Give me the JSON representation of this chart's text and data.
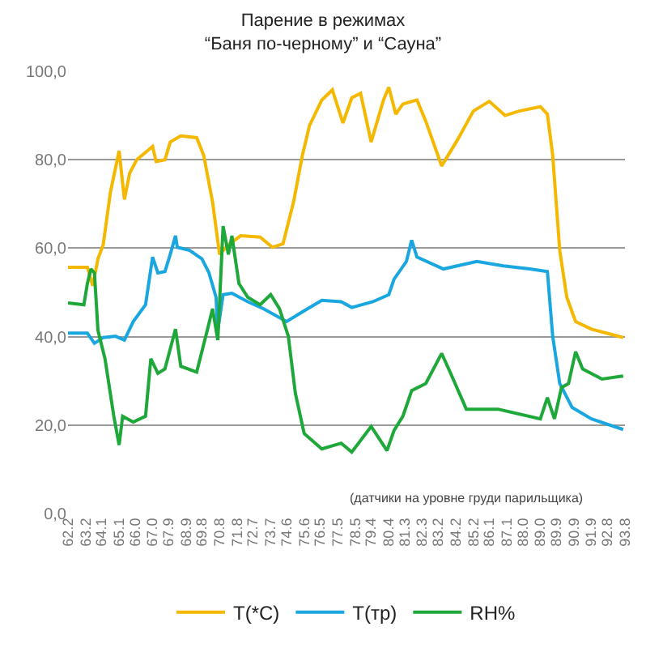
{
  "chart_data": {
    "type": "line",
    "title": "Парение в режимах\n“Баня по-черному” и “Сауна”",
    "annotations": [
      "(датчики на уровне груди парильщика)"
    ],
    "xlim": [
      62.2,
      93.8
    ],
    "xticks": [
      62.2,
      63.2,
      64.1,
      65.1,
      {
        "value": 66.0,
        "label": "66.0"
      },
      {
        "value": 67.0,
        "label": "67.0"
      },
      67.9,
      68.9,
      69.8,
      70.8,
      71.8,
      72.7,
      73.7,
      74.6,
      75.6,
      76.5,
      77.5,
      78.5,
      79.4,
      80.4,
      81.3,
      82.3,
      83.2,
      84.2,
      85.2,
      86.1,
      87.1,
      {
        "value": 88.0,
        "label": "88.0"
      },
      {
        "value": 89.0,
        "label": "89.0"
      },
      89.9,
      90.9,
      91.9,
      92.8,
      93.8
    ],
    "ylim": [
      0,
      100
    ],
    "yticks": [
      {
        "value": 0,
        "label": "0,0"
      },
      {
        "value": 20,
        "label": "20,0"
      },
      {
        "value": 40,
        "label": "40,0"
      },
      {
        "value": 60,
        "label": "60,0"
      },
      {
        "value": 80,
        "label": "80,0"
      },
      {
        "value": 100,
        "label": "100,0"
      }
    ],
    "grid": "y",
    "legend": "bottom",
    "marker": "none",
    "line_style": "solid",
    "series": [
      {
        "name": "T(*C)",
        "color": "#f5b800",
        "x": [
          62.2,
          63.3,
          63.6,
          63.9,
          64.2,
          64.6,
          65.1,
          65.4,
          65.7,
          66.1,
          66.4,
          66.7,
          67.0,
          67.2,
          67.7,
          68.0,
          68.6,
          69.5,
          69.9,
          70.4,
          70.8,
          71.3,
          72.0,
          73.1,
          73.8,
          74.4,
          75.0,
          75.5,
          75.9,
          76.6,
          77.2,
          77.8,
          78.3,
          78.8,
          79.4,
          80.1,
          80.4,
          80.8,
          81.2,
          82.0,
          82.5,
          83.4,
          84.3,
          85.2,
          86.1,
          87.0,
          87.8,
          89.0,
          89.4,
          89.7,
          90.1,
          90.5,
          91.0,
          91.9,
          93.7
        ],
        "values": [
          55.7,
          55.7,
          51.5,
          57.6,
          60.8,
          72.5,
          82,
          71,
          77,
          80,
          81,
          82,
          83,
          79.6,
          80,
          84,
          85.4,
          85,
          81,
          70.5,
          58.6,
          60.8,
          62.8,
          62.5,
          60.2,
          61,
          70.5,
          81,
          87.7,
          93.5,
          95.8,
          88.3,
          94,
          95,
          84,
          93.5,
          96.4,
          90.3,
          92.6,
          93.5,
          88.7,
          78.6,
          84.5,
          91,
          93.2,
          90,
          91,
          92,
          90.3,
          81,
          59.5,
          48.9,
          43.4,
          41.7,
          39.8
        ]
      },
      {
        "name": "T(тр)",
        "color": "#1aa7e0",
        "x": [
          62.2,
          63.3,
          63.7,
          64.2,
          64.9,
          65.4,
          65.9,
          66.6,
          67.0,
          67.3,
          67.7,
          68.0,
          68.3,
          68.4,
          69.1,
          69.8,
          70.2,
          70.6,
          70.7,
          71.0,
          71.5,
          72.4,
          73.3,
          74.6,
          75.5,
          76.6,
          77.7,
          78.3,
          79.5,
          80.4,
          80.7,
          81.4,
          81.7,
          82.0,
          83.5,
          85.4,
          86.9,
          88.4,
          89.4,
          89.7,
          90.1,
          90.8,
          91.9,
          93.7
        ],
        "values": [
          40.8,
          40.8,
          38.5,
          39.8,
          40.1,
          39.2,
          43.4,
          47.2,
          58,
          54.4,
          54.7,
          58.6,
          62.8,
          60.2,
          59.5,
          57.6,
          54.4,
          48.9,
          41.4,
          49.5,
          49.8,
          47.9,
          46.3,
          43.4,
          45.6,
          48.2,
          47.9,
          46.6,
          47.9,
          49.5,
          53,
          57,
          61.8,
          58,
          55.3,
          57,
          56,
          55.3,
          54.7,
          40.1,
          29.4,
          24,
          21.4,
          19
        ]
      },
      {
        "name": "RH%",
        "color": "#1fa83a",
        "x": [
          62.2,
          63.1,
          63.3,
          63.5,
          63.7,
          63.9,
          64.3,
          64.8,
          65.1,
          65.3,
          65.9,
          66.6,
          66.9,
          67.3,
          67.7,
          68.3,
          68.6,
          69.5,
          70.1,
          70.4,
          70.7,
          71.0,
          71.3,
          71.5,
          71.9,
          72.4,
          73.1,
          73.7,
          74.2,
          74.7,
          75.1,
          75.6,
          76.6,
          77.7,
          78.3,
          79.4,
          80.3,
          80.7,
          81.2,
          81.7,
          82.5,
          83.4,
          83.8,
          84.8,
          86.6,
          89.0,
          89.4,
          89.8,
          90.2,
          90.6,
          91.0,
          91.4,
          92.5,
          93.7
        ],
        "values": [
          47.6,
          47.2,
          52,
          55.3,
          54.4,
          41.4,
          35,
          22,
          15.5,
          22,
          20.7,
          22,
          35,
          31.7,
          32.7,
          41.7,
          33.3,
          32,
          41.4,
          46.3,
          39.2,
          65,
          58.6,
          62.8,
          52,
          48.9,
          47.2,
          49.5,
          46.3,
          40.1,
          27.2,
          18.1,
          14.6,
          15.9,
          13.9,
          19.7,
          14.2,
          18.8,
          22,
          27.8,
          29.4,
          36.2,
          32.7,
          23.6,
          23.6,
          21.4,
          26.2,
          21.4,
          28.5,
          29.4,
          36.6,
          32.7,
          30.4,
          31.1
        ]
      }
    ]
  }
}
